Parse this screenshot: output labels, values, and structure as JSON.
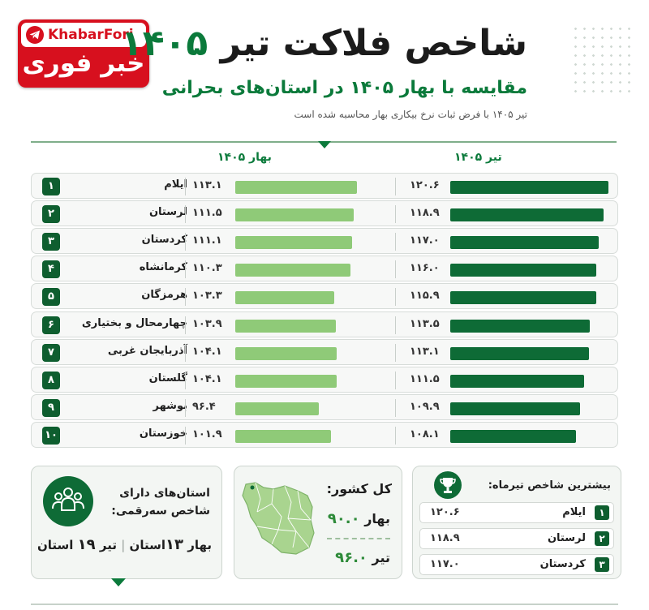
{
  "header": {
    "title_text": "شاخص فلاکت تیر ",
    "title_num": "۱۴۰۵",
    "subtitle": "مقایسه با بهار ۱۴۰۵ در استان‌های بحرانی",
    "note": "تیر ۱۴۰۵ با فرض ثبات نرخ بیکاری بهار محاسبه شده است"
  },
  "logo": {
    "en": "KhabarFori",
    "fa": "خبر فوری",
    "icon": "telegram-icon"
  },
  "colors": {
    "accent": "#0b7a3b",
    "bar_tir": "#0e6b36",
    "bar_bahar": "#8fca78",
    "logo_red": "#d7101e"
  },
  "chart_data": {
    "type": "bar",
    "orientation": "horizontal",
    "categories": [
      "ایلام",
      "لرستان",
      "کردستان",
      "کرمانشاه",
      "هرمزگان",
      "چهارمحال و بختیاری",
      "آذربایجان غربی",
      "گلستان",
      "بوشهر",
      "خوزستان"
    ],
    "ranks": [
      "۱",
      "۲",
      "۳",
      "۴",
      "۵",
      "۶",
      "۷",
      "۸",
      "۹",
      "۱۰"
    ],
    "series": [
      {
        "name": "تیر ۱۴۰۵",
        "values": [
          120.6,
          118.9,
          117.0,
          116.0,
          115.9,
          113.5,
          113.1,
          111.5,
          109.9,
          108.1
        ],
        "labels": [
          "۱۲۰.۶",
          "۱۱۸.۹",
          "۱۱۷.۰",
          "۱۱۶.۰",
          "۱۱۵.۹",
          "۱۱۳.۵",
          "۱۱۳.۱",
          "۱۱۱.۵",
          "۱۰۹.۹",
          "۱۰۸.۱"
        ]
      },
      {
        "name": "بهار ۱۴۰۵",
        "values": [
          113.1,
          111.5,
          111.1,
          110.3,
          103.3,
          103.9,
          104.1,
          104.1,
          96.4,
          101.9
        ],
        "labels": [
          "۱۱۳.۱",
          "۱۱۱.۵",
          "۱۱۱.۱",
          "۱۱۰.۳",
          "۱۰۳.۳",
          "۱۰۳.۹",
          "۱۰۴.۱",
          "۱۰۴.۱",
          "۹۶.۴",
          "۱۰۱.۹"
        ]
      }
    ]
  },
  "cards": {
    "left": {
      "title_line1": "استان‌های دارای",
      "title_line2": "شاخص سه‌رقمی:",
      "bahar_label": "بهار",
      "bahar_count": "۱۳",
      "tir_label": "تیر",
      "tir_count": "۱۹",
      "unit": "استان",
      "icon": "people-icon"
    },
    "middle": {
      "title": "کل کشور:",
      "bahar_label": "بهار",
      "bahar_value": "۹۰.۰",
      "tir_label": "تیر",
      "tir_value": "۹۶.۰",
      "icon": "iran-map-icon"
    },
    "right": {
      "title": "بیشترین شاخص تیرماه:",
      "icon": "trophy-icon",
      "items": [
        {
          "rank": "۱",
          "name": "ایلام",
          "value": "۱۲۰.۶"
        },
        {
          "rank": "۲",
          "name": "لرستان",
          "value": "۱۱۸.۹"
        },
        {
          "rank": "۳",
          "name": "کردستان",
          "value": "۱۱۷.۰"
        }
      ]
    }
  }
}
